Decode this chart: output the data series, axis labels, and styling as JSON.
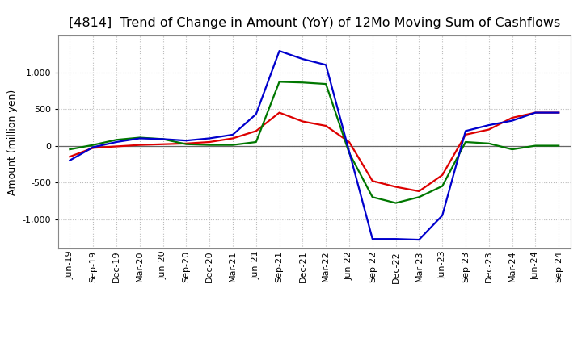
{
  "title": "[4814]  Trend of Change in Amount (YoY) of 12Mo Moving Sum of Cashflows",
  "ylabel": "Amount (million yen)",
  "x_labels": [
    "Jun-19",
    "Sep-19",
    "Dec-19",
    "Mar-20",
    "Jun-20",
    "Sep-20",
    "Dec-20",
    "Mar-21",
    "Jun-21",
    "Sep-21",
    "Dec-21",
    "Mar-22",
    "Jun-22",
    "Sep-22",
    "Dec-22",
    "Mar-23",
    "Jun-23",
    "Sep-23",
    "Dec-23",
    "Mar-24",
    "Jun-24",
    "Sep-24"
  ],
  "operating": [
    -150,
    -30,
    -10,
    10,
    20,
    30,
    50,
    100,
    200,
    450,
    330,
    270,
    50,
    -480,
    -560,
    -620,
    -400,
    150,
    220,
    380,
    450,
    450
  ],
  "investing": [
    -50,
    10,
    80,
    110,
    90,
    20,
    10,
    10,
    50,
    870,
    860,
    840,
    -100,
    -700,
    -780,
    -700,
    -550,
    50,
    30,
    -50,
    0,
    0
  ],
  "free": [
    -200,
    -20,
    50,
    100,
    90,
    70,
    100,
    150,
    430,
    1290,
    1180,
    1100,
    -80,
    -1270,
    -1270,
    -1280,
    -950,
    200,
    280,
    340,
    450,
    450
  ],
  "ylim": [
    -1400,
    1500
  ],
  "yticks": [
    -1000,
    -500,
    0,
    500,
    1000
  ],
  "operating_color": "#dd0000",
  "investing_color": "#007700",
  "free_color": "#0000cc",
  "background_color": "#ffffff",
  "grid_color": "#bbbbbb",
  "title_fontsize": 11.5,
  "axis_fontsize": 9,
  "tick_fontsize": 8,
  "legend_fontsize": 9
}
